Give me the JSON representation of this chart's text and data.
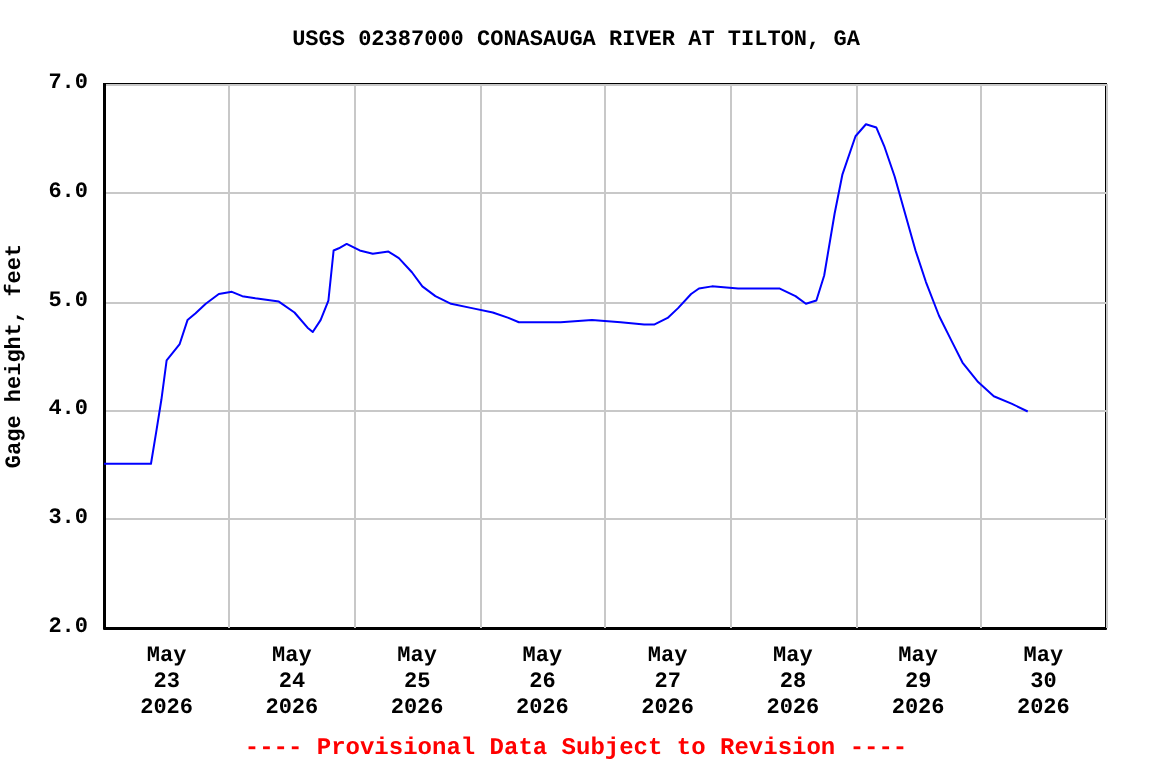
{
  "chart_data": {
    "type": "line",
    "title": "USGS 02387000 CONASAUGA RIVER AT TILTON, GA",
    "ylabel": "Gage height, feet",
    "annotations": [
      "---- Provisional Data Subject to Revision ----"
    ],
    "x": [
      "2026-05-23T00:00",
      "2026-05-23T09:00",
      "2026-05-23T10:00",
      "2026-05-23T11:00",
      "2026-05-23T12:00",
      "2026-05-23T13:00",
      "2026-05-23T14:30",
      "2026-05-23T16:00",
      "2026-05-23T17:30",
      "2026-05-23T19:30",
      "2026-05-23T22:00",
      "2026-05-24T00:30",
      "2026-05-24T02:30",
      "2026-05-24T05:00",
      "2026-05-24T09:30",
      "2026-05-24T12:30",
      "2026-05-24T15:00",
      "2026-05-24T16:00",
      "2026-05-24T17:30",
      "2026-05-24T19:00",
      "2026-05-24T20:00",
      "2026-05-24T21:00",
      "2026-05-24T22:30",
      "2026-05-25T01:00",
      "2026-05-25T03:30",
      "2026-05-25T06:30",
      "2026-05-25T08:30",
      "2026-05-25T11:00",
      "2026-05-25T13:00",
      "2026-05-25T15:30",
      "2026-05-25T18:30",
      "2026-05-25T22:30",
      "2026-05-26T02:30",
      "2026-05-26T05:30",
      "2026-05-26T07:30",
      "2026-05-26T15:30",
      "2026-05-26T21:30",
      "2026-05-27T03:00",
      "2026-05-27T07:30",
      "2026-05-27T09:30",
      "2026-05-27T12:00",
      "2026-05-27T14:00",
      "2026-05-27T16:30",
      "2026-05-27T18:00",
      "2026-05-27T20:30",
      "2026-05-28T01:30",
      "2026-05-28T09:30",
      "2026-05-28T12:30",
      "2026-05-28T14:30",
      "2026-05-28T16:30",
      "2026-05-28T18:00",
      "2026-05-28T20:00",
      "2026-05-28T21:30",
      "2026-05-29T00:00",
      "2026-05-29T02:00",
      "2026-05-29T04:00",
      "2026-05-29T05:30",
      "2026-05-29T07:30",
      "2026-05-29T09:30",
      "2026-05-29T11:30",
      "2026-05-29T13:30",
      "2026-05-29T16:00",
      "2026-05-29T18:30",
      "2026-05-29T20:30",
      "2026-05-29T23:30",
      "2026-05-30T02:30",
      "2026-05-30T06:00",
      "2026-05-30T09:00"
    ],
    "series": [
      {
        "color": "#0000ff",
        "values": [
          3.51,
          3.51,
          3.8,
          4.1,
          4.46,
          4.52,
          4.61,
          4.83,
          4.89,
          4.98,
          5.07,
          5.09,
          5.05,
          5.03,
          5.0,
          4.9,
          4.76,
          4.72,
          4.83,
          5.01,
          5.47,
          5.49,
          5.53,
          5.47,
          5.44,
          5.46,
          5.4,
          5.27,
          5.14,
          5.05,
          4.98,
          4.94,
          4.9,
          4.85,
          4.81,
          4.81,
          4.83,
          4.81,
          4.79,
          4.79,
          4.85,
          4.94,
          5.07,
          5.12,
          5.14,
          5.12,
          5.12,
          5.05,
          4.98,
          5.01,
          5.24,
          5.81,
          6.17,
          6.52,
          6.63,
          6.6,
          6.43,
          6.15,
          5.81,
          5.47,
          5.18,
          4.87,
          4.63,
          4.44,
          4.26,
          4.13,
          4.06,
          3.99
        ]
      }
    ],
    "xlim": [
      "2026-05-23T00:00",
      "2026-05-31T00:00"
    ],
    "xticks": [
      {
        "value": "2026-05-23T00:00",
        "label": null
      },
      {
        "value": "2026-05-23T12:00",
        "label": "May\n23\n2026"
      },
      {
        "value": "2026-05-24T00:00",
        "label": null
      },
      {
        "value": "2026-05-24T12:00",
        "label": "May\n24\n2026"
      },
      {
        "value": "2026-05-25T00:00",
        "label": null
      },
      {
        "value": "2026-05-25T12:00",
        "label": "May\n25\n2026"
      },
      {
        "value": "2026-05-26T00:00",
        "label": null
      },
      {
        "value": "2026-05-26T12:00",
        "label": "May\n26\n2026"
      },
      {
        "value": "2026-05-27T00:00",
        "label": null
      },
      {
        "value": "2026-05-27T12:00",
        "label": "May\n27\n2026"
      },
      {
        "value": "2026-05-28T00:00",
        "label": null
      },
      {
        "value": "2026-05-28T12:00",
        "label": "May\n28\n2026"
      },
      {
        "value": "2026-05-29T00:00",
        "label": null
      },
      {
        "value": "2026-05-29T12:00",
        "label": "May\n29\n2026"
      },
      {
        "value": "2026-05-30T00:00",
        "label": null
      },
      {
        "value": "2026-05-30T12:00",
        "label": "May\n30\n2026"
      },
      {
        "value": "2026-05-31T00:00",
        "label": null
      }
    ],
    "ylim": [
      2,
      7
    ],
    "yticks": [
      {
        "value": 2,
        "label": "2.0"
      },
      {
        "value": 3,
        "label": "3.0"
      },
      {
        "value": 4,
        "label": "4.0"
      },
      {
        "value": 5,
        "label": "5.0"
      },
      {
        "value": 6,
        "label": "6.0"
      },
      {
        "value": 7,
        "label": "7.0"
      }
    ],
    "grid": true,
    "marker": "none",
    "line_style": "solid"
  }
}
